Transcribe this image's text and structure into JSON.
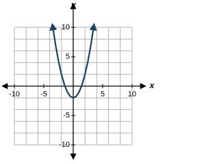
{
  "chart_data": {
    "type": "line",
    "x_label": "x",
    "y_label": "y",
    "xlim": [
      -10,
      10
    ],
    "ylim": [
      -10,
      10
    ],
    "xticks": [
      -10,
      -5,
      5,
      10
    ],
    "yticks": [
      -10,
      -5,
      5,
      10
    ],
    "xgrid": [
      -10,
      -8,
      -6,
      -4,
      -2,
      0,
      2,
      4,
      6,
      8,
      10
    ],
    "ygrid": [
      -10,
      -8,
      -6,
      -4,
      -2,
      0,
      2,
      4,
      6,
      8,
      10
    ],
    "grid": true,
    "series": [
      {
        "color": "#1b3f5e",
        "x": [
          -3.5,
          -3,
          -2.5,
          -2,
          -1.5,
          -1,
          -0.5,
          0,
          0.5,
          1,
          1.5,
          2,
          2.5,
          3,
          3.5
        ],
        "values": [
          10.25,
          7,
          4.25,
          2,
          0.25,
          -1,
          -1.75,
          -2,
          -1.75,
          -1,
          0.25,
          2,
          4.25,
          7,
          10.25
        ]
      }
    ]
  }
}
